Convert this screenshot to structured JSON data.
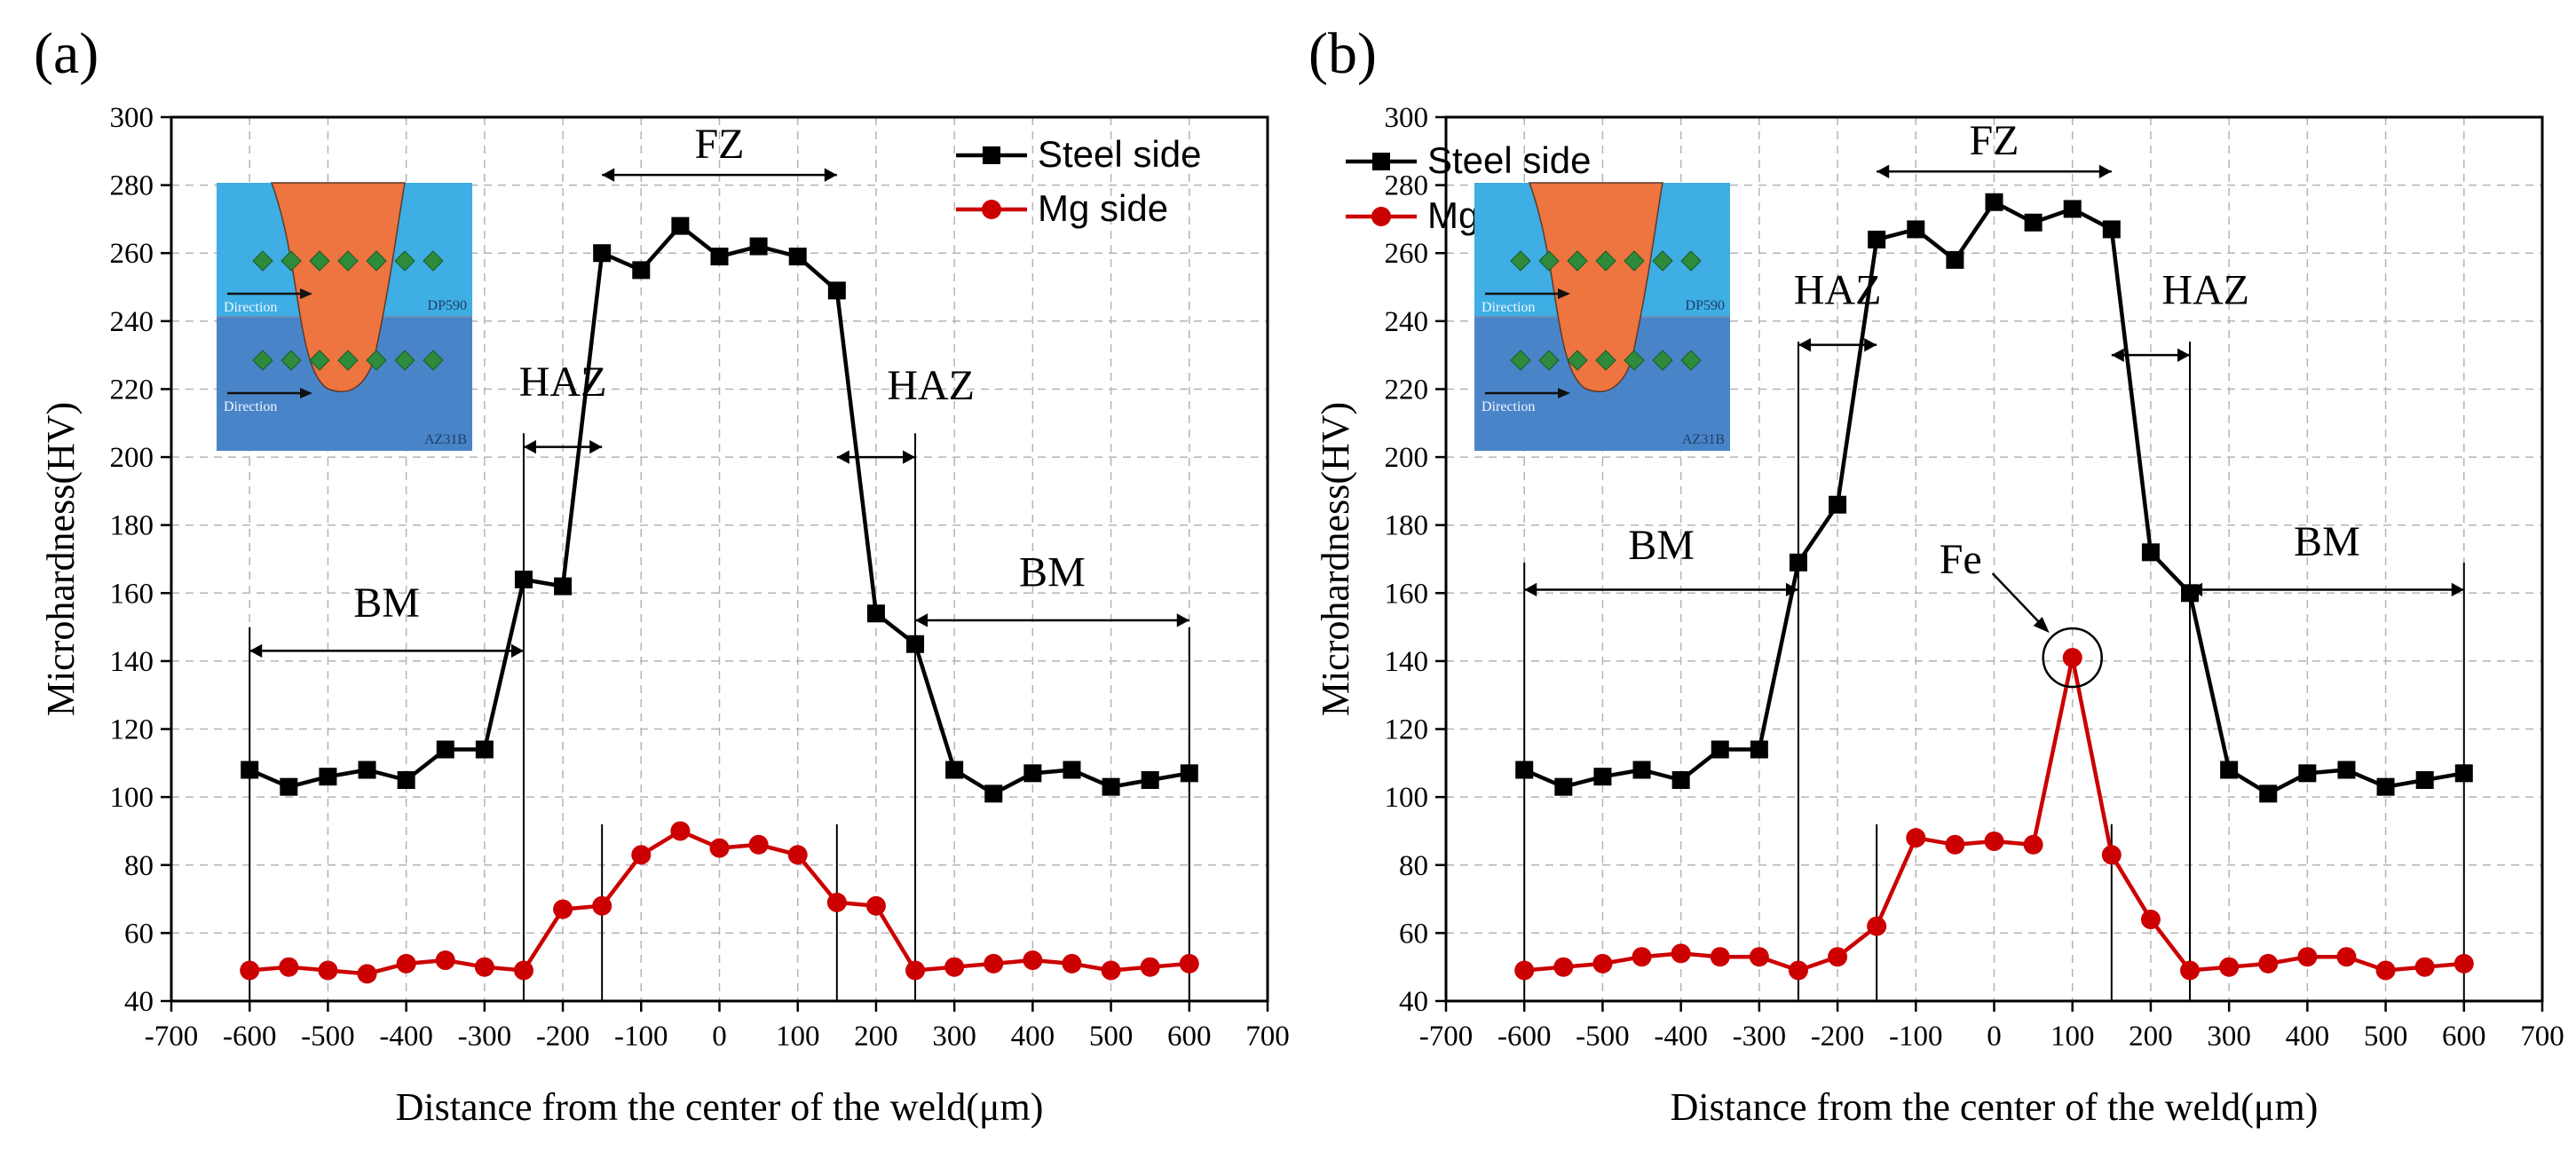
{
  "figure": {
    "colors": {
      "steel": "#000000",
      "mg": "#cc0000",
      "grid": "#b4b4b4",
      "inset_steel": "#3eaee4",
      "inset_mg": "#4a84c8",
      "inset_weld": "#ee7440",
      "inset_marker": "#2e8b3c"
    }
  },
  "chart_data": [
    {
      "type": "line",
      "panel_label": "(a)",
      "xlabel": "Distance from the center of the weld(μm)",
      "ylabel": "Microhardness(HV)",
      "xlim": [
        -700,
        700
      ],
      "ylim": [
        40,
        300
      ],
      "xticks": [
        -700,
        -600,
        -500,
        -400,
        -300,
        -200,
        -100,
        0,
        100,
        200,
        300,
        400,
        500,
        600,
        700
      ],
      "yticks": [
        40,
        60,
        80,
        100,
        120,
        140,
        160,
        180,
        200,
        220,
        240,
        260,
        280,
        300
      ],
      "grid": true,
      "legend": "top-right",
      "series": [
        {
          "name": "Steel side",
          "marker": "square",
          "x": [
            -600,
            -550,
            -500,
            -450,
            -400,
            -350,
            -300,
            -250,
            -200,
            -150,
            -100,
            -50,
            0,
            50,
            100,
            150,
            200,
            250,
            300,
            350,
            400,
            450,
            500,
            550,
            600
          ],
          "y": [
            108,
            103,
            106,
            108,
            105,
            114,
            114,
            164,
            162,
            260,
            255,
            268,
            259,
            262,
            259,
            249,
            154,
            145,
            108,
            101,
            107,
            108,
            103,
            105,
            107
          ]
        },
        {
          "name": "Mg side",
          "marker": "circle",
          "x": [
            -600,
            -550,
            -500,
            -450,
            -400,
            -350,
            -300,
            -250,
            -200,
            -150,
            -100,
            -50,
            0,
            50,
            100,
            150,
            200,
            250,
            300,
            350,
            400,
            450,
            500,
            550,
            600
          ],
          "y": [
            49,
            50,
            49,
            48,
            51,
            52,
            50,
            49,
            67,
            68,
            83,
            90,
            85,
            86,
            83,
            69,
            68,
            49,
            50,
            51,
            52,
            51,
            49,
            50,
            51
          ]
        }
      ],
      "boundaries": [
        -600,
        -250,
        -150,
        150,
        250,
        600
      ],
      "region_labels": {
        "bm_left": "BM",
        "haz_left": "HAZ",
        "fz": "FZ",
        "haz_right": "HAZ",
        "bm_right": "BM"
      },
      "annotation": null,
      "inset": {
        "steel_label": "DP590",
        "mg_label": "AZ31B",
        "direction_label": "Direction"
      }
    },
    {
      "type": "line",
      "panel_label": "(b)",
      "xlabel": "Distance from the center of the weld(μm)",
      "ylabel": "Microhardness(HV)",
      "xlim": [
        -700,
        700
      ],
      "ylim": [
        40,
        300
      ],
      "xticks": [
        -700,
        -600,
        -500,
        -400,
        -300,
        -200,
        -100,
        0,
        100,
        200,
        300,
        400,
        500,
        600,
        700
      ],
      "yticks": [
        40,
        60,
        80,
        100,
        120,
        140,
        160,
        180,
        200,
        220,
        240,
        260,
        280,
        300
      ],
      "grid": true,
      "legend": "top-right",
      "series": [
        {
          "name": "Steel side",
          "marker": "square",
          "x": [
            -600,
            -550,
            -500,
            -450,
            -400,
            -350,
            -300,
            -250,
            -200,
            -150,
            -100,
            -50,
            0,
            50,
            100,
            150,
            200,
            250,
            300,
            350,
            400,
            450,
            500,
            550,
            600
          ],
          "y": [
            108,
            103,
            106,
            108,
            105,
            114,
            114,
            169,
            186,
            264,
            267,
            258,
            275,
            269,
            273,
            267,
            172,
            160,
            108,
            101,
            107,
            108,
            103,
            105,
            107
          ]
        },
        {
          "name": "Mg side",
          "marker": "circle",
          "x": [
            -600,
            -550,
            -500,
            -450,
            -400,
            -350,
            -300,
            -250,
            -200,
            -150,
            -100,
            -50,
            0,
            50,
            100,
            150,
            200,
            250,
            300,
            350,
            400,
            450,
            500,
            550,
            600
          ],
          "y": [
            49,
            50,
            51,
            53,
            54,
            53,
            53,
            49,
            53,
            62,
            88,
            86,
            87,
            86,
            141,
            83,
            64,
            49,
            50,
            51,
            53,
            53,
            49,
            50,
            51
          ]
        }
      ],
      "boundaries": [
        -600,
        -250,
        -150,
        150,
        250,
        600
      ],
      "region_labels": {
        "bm_left": "BM",
        "haz_left": "HAZ",
        "fz": "FZ",
        "haz_right": "HAZ",
        "bm_right": "BM"
      },
      "annotation": {
        "text": "Fe",
        "x": 100,
        "y": 141
      },
      "inset": {
        "steel_label": "DP590",
        "mg_label": "AZ31B",
        "direction_label": "Direction"
      }
    }
  ]
}
